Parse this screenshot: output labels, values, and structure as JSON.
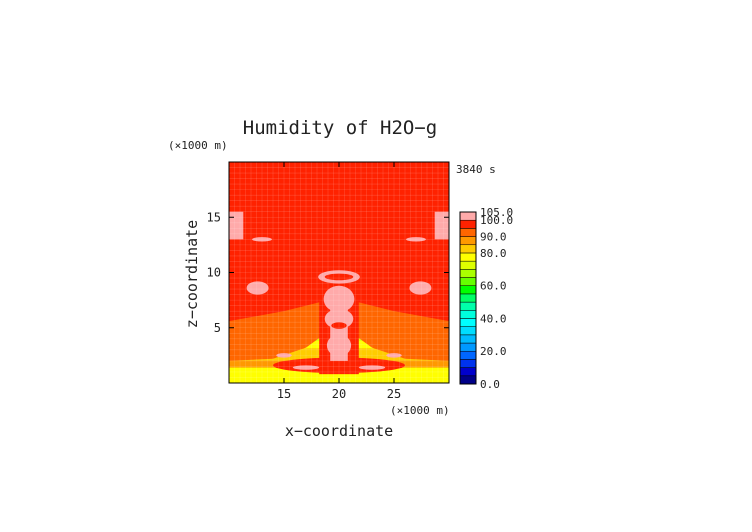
{
  "chart_data": {
    "type": "heatmap",
    "title": "Humidity of H2O−g",
    "xlabel": "x−coordinate",
    "ylabel": "z−coordinate",
    "x_unit": "(×1000 m)",
    "y_unit": "(×1000 m)",
    "time_label": "3840 s",
    "xlim": [
      10,
      30
    ],
    "ylim": [
      0,
      20
    ],
    "x_ticks": [
      15,
      20,
      25
    ],
    "y_ticks": [
      5,
      10,
      15
    ],
    "x_tick_labels": [
      "15",
      "20",
      "25"
    ],
    "y_tick_labels": [
      "5",
      "10",
      "15"
    ],
    "colorbar": {
      "min": 0,
      "max": 105,
      "tick_values": [
        0,
        20,
        40,
        60,
        80,
        90,
        100,
        105
      ],
      "tick_labels": [
        "0.0",
        "20.0",
        "40.0",
        "60.0",
        "80.0",
        "90.0",
        "100.0",
        "105.0"
      ],
      "levels": [
        {
          "from": 0,
          "to": 5,
          "color": "#000088"
        },
        {
          "from": 5,
          "to": 10,
          "color": "#0000cc"
        },
        {
          "from": 10,
          "to": 15,
          "color": "#0033ee"
        },
        {
          "from": 15,
          "to": 20,
          "color": "#0066ff"
        },
        {
          "from": 20,
          "to": 25,
          "color": "#0099ff"
        },
        {
          "from": 25,
          "to": 30,
          "color": "#00bbff"
        },
        {
          "from": 30,
          "to": 35,
          "color": "#00ddff"
        },
        {
          "from": 35,
          "to": 40,
          "color": "#00ffff"
        },
        {
          "from": 40,
          "to": 45,
          "color": "#00ffdd"
        },
        {
          "from": 45,
          "to": 50,
          "color": "#00ffaa"
        },
        {
          "from": 50,
          "to": 55,
          "color": "#00ff66"
        },
        {
          "from": 55,
          "to": 60,
          "color": "#00ff00"
        },
        {
          "from": 60,
          "to": 65,
          "color": "#66ff00"
        },
        {
          "from": 65,
          "to": 70,
          "color": "#aaff00"
        },
        {
          "from": 70,
          "to": 75,
          "color": "#ddff00"
        },
        {
          "from": 75,
          "to": 80,
          "color": "#ffff00"
        },
        {
          "from": 80,
          "to": 85,
          "color": "#ffcc00"
        },
        {
          "from": 85,
          "to": 90,
          "color": "#ff9900"
        },
        {
          "from": 90,
          "to": 95,
          "color": "#ff6600"
        },
        {
          "from": 95,
          "to": 100,
          "color": "#ff2200"
        },
        {
          "from": 100,
          "to": 105,
          "color": "#ffaaaa"
        }
      ]
    },
    "regions": [
      {
        "name": "saturated-background",
        "value": 97,
        "shape": "rect",
        "x": [
          10,
          30
        ],
        "z": [
          0,
          20
        ]
      },
      {
        "name": "surface-layer",
        "value": 77,
        "shape": "rect",
        "x": [
          10,
          30
        ],
        "z": [
          0,
          1.4
        ]
      },
      {
        "name": "low-band-yellow",
        "value": 78,
        "shape": "rect",
        "x": [
          10,
          30
        ],
        "z": [
          3.1,
          3.8
        ]
      },
      {
        "name": "low-band-yellow-green",
        "value": 72,
        "shape": "rect",
        "x": [
          10,
          30
        ],
        "z": [
          3.8,
          4.4
        ]
      },
      {
        "name": "low-band-light-orange",
        "value": 84,
        "shape": "rect",
        "x": [
          10,
          30
        ],
        "z": [
          2.0,
          3.1
        ]
      },
      {
        "name": "low-band-orange",
        "value": 88,
        "shape": "rect",
        "x": [
          10,
          30
        ],
        "z": [
          4.4,
          5.6
        ]
      },
      {
        "name": "near-surface-orange",
        "value": 87,
        "shape": "rect",
        "x": [
          10,
          30
        ],
        "z": [
          1.4,
          2.0
        ]
      },
      {
        "name": "left-wing-orange",
        "value": 92,
        "shape": "polygon",
        "points": [
          [
            10,
            5.6
          ],
          [
            15,
            6.5
          ],
          [
            19,
            7.5
          ],
          [
            19.5,
            5
          ],
          [
            17,
            3.2
          ],
          [
            14,
            2.2
          ],
          [
            10,
            2.0
          ]
        ]
      },
      {
        "name": "right-wing-orange",
        "value": 92,
        "shape": "polygon",
        "points": [
          [
            30,
            5.6
          ],
          [
            25,
            6.5
          ],
          [
            21,
            7.5
          ],
          [
            20.5,
            5
          ],
          [
            23,
            3.2
          ],
          [
            26,
            2.2
          ],
          [
            30,
            2.0
          ]
        ]
      },
      {
        "name": "central-column-red",
        "value": 97,
        "shape": "rect",
        "x": [
          18.2,
          21.8
        ],
        "z": [
          0.8,
          8
        ]
      },
      {
        "name": "lower-core-red",
        "value": 97,
        "shape": "ellipse",
        "cx": 20,
        "cz": 1.6,
        "rx": 6,
        "rz": 0.7
      },
      {
        "name": "central-plume",
        "value": 102,
        "shape": "rect",
        "x": [
          19.2,
          20.8
        ],
        "z": [
          2.0,
          8.3
        ]
      },
      {
        "name": "plume-upper",
        "value": 102,
        "shape": "ellipse",
        "cx": 20,
        "cz": 7.6,
        "rx": 1.4,
        "rz": 1.2
      },
      {
        "name": "plume-middle",
        "value": 102,
        "shape": "ellipse",
        "cx": 20,
        "cz": 5.8,
        "rx": 1.3,
        "rz": 0.9
      },
      {
        "name": "plume-lower",
        "value": 102,
        "shape": "ellipse",
        "cx": 20,
        "cz": 3.4,
        "rx": 1.1,
        "rz": 1.0
      },
      {
        "name": "plume-core-red",
        "value": 97,
        "shape": "ellipse",
        "cx": 20,
        "cz": 5.2,
        "rx": 0.7,
        "rz": 0.3
      },
      {
        "name": "top-ring",
        "value": 102,
        "shape": "ellipse",
        "cx": 20,
        "cz": 9.6,
        "rx": 1.9,
        "rz": 0.6
      },
      {
        "name": "top-ring-inner",
        "value": 97,
        "shape": "ellipse",
        "cx": 20,
        "cz": 9.6,
        "rx": 1.3,
        "rz": 0.3
      },
      {
        "name": "upper-left-patch",
        "value": 102,
        "shape": "ellipse",
        "cx": 12.6,
        "cz": 8.6,
        "rx": 1.0,
        "rz": 0.6
      },
      {
        "name": "upper-right-patch",
        "value": 102,
        "shape": "ellipse",
        "cx": 27.4,
        "cz": 8.6,
        "rx": 1.0,
        "rz": 0.6
      },
      {
        "name": "mid-left-arc",
        "value": 102,
        "shape": "ellipse",
        "cx": 13.0,
        "cz": 13.0,
        "rx": 0.9,
        "rz": 0.2
      },
      {
        "name": "mid-right-arc",
        "value": 102,
        "shape": "ellipse",
        "cx": 27.0,
        "cz": 13.0,
        "rx": 0.9,
        "rz": 0.2
      },
      {
        "name": "left-edge-patch",
        "value": 102,
        "shape": "rect",
        "x": [
          10,
          11.3
        ],
        "z": [
          13.0,
          15.5
        ]
      },
      {
        "name": "right-edge-patch",
        "value": 102,
        "shape": "rect",
        "x": [
          28.7,
          30
        ],
        "z": [
          13.0,
          15.5
        ]
      },
      {
        "name": "surface-left-streak",
        "value": 102,
        "shape": "ellipse",
        "cx": 17.0,
        "cz": 1.4,
        "rx": 1.2,
        "rz": 0.2
      },
      {
        "name": "surface-right-streak",
        "value": 102,
        "shape": "ellipse",
        "cx": 23.0,
        "cz": 1.4,
        "rx": 1.2,
        "rz": 0.2
      },
      {
        "name": "lower-left-speck",
        "value": 102,
        "shape": "ellipse",
        "cx": 15.0,
        "cz": 2.5,
        "rx": 0.7,
        "rz": 0.2
      },
      {
        "name": "lower-right-speck",
        "value": 102,
        "shape": "ellipse",
        "cx": 25.0,
        "cz": 2.5,
        "rx": 0.7,
        "rz": 0.2
      }
    ]
  }
}
